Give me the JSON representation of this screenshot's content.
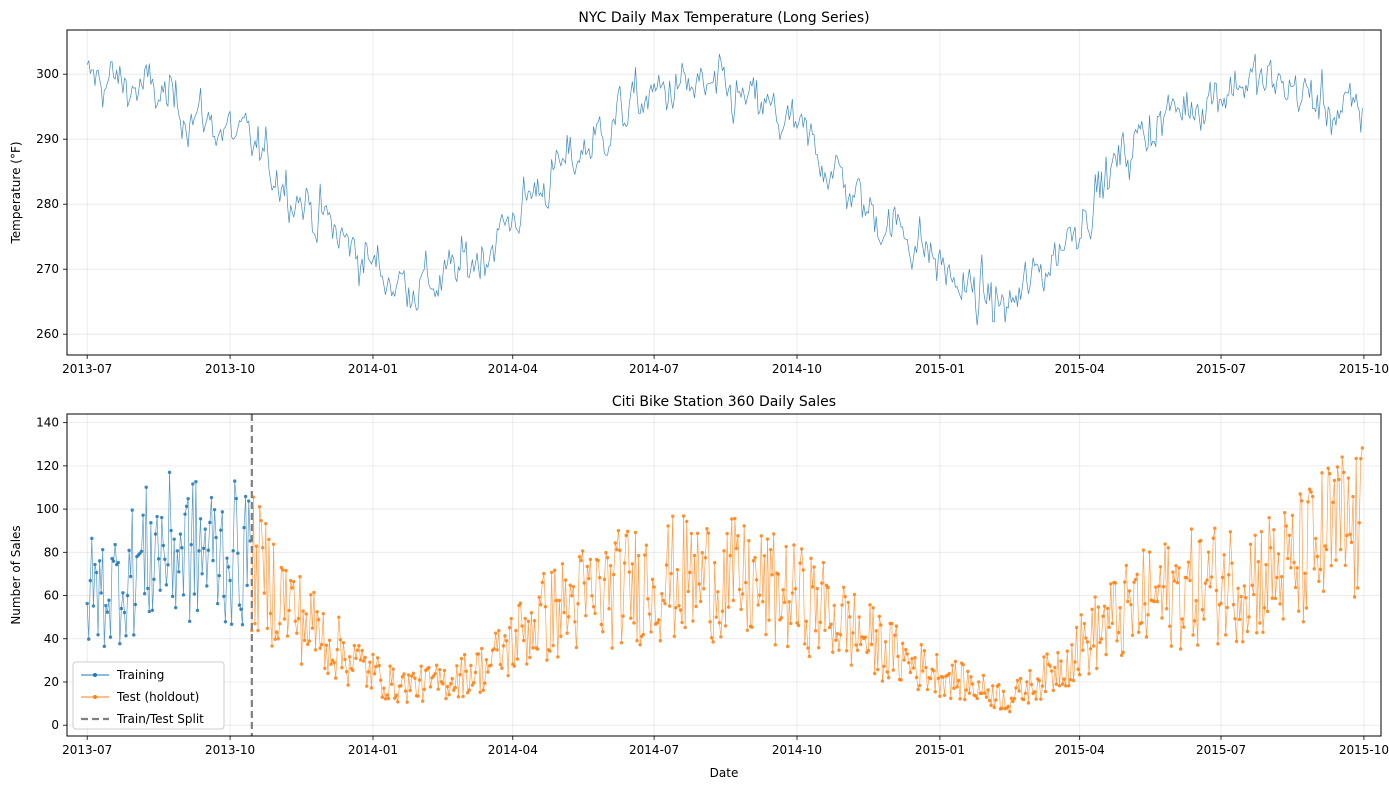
{
  "chart_data": [
    {
      "type": "line",
      "title": "NYC Daily Max Temperature (Long Series)",
      "xlabel": "",
      "ylabel": "Temperature (°F)",
      "xlim": [
        "2013-06-18",
        "2015-10-12"
      ],
      "ylim": [
        256.8,
        306.8
      ],
      "xticks": [
        "2013-07",
        "2013-10",
        "2014-01",
        "2014-04",
        "2014-07",
        "2014-10",
        "2015-01",
        "2015-04",
        "2015-07",
        "2015-10"
      ],
      "yticks": [
        260,
        270,
        280,
        290,
        300
      ],
      "grid": true,
      "color": "#1f77b4",
      "series": [
        {
          "name": "Temperature",
          "x_range": [
            "2013-07-01",
            "2015-09-30"
          ],
          "frequency": "daily",
          "seasonal_shape": {
            "mean": 282.5,
            "amplitude": 16,
            "peak": "mid-July",
            "trough": "mid-January",
            "noise_std": 3
          },
          "approx_monthly_values": [
            {
              "x": "2013-07",
              "y": 299
            },
            {
              "x": "2013-08",
              "y": 297
            },
            {
              "x": "2013-09",
              "y": 293
            },
            {
              "x": "2013-10",
              "y": 289
            },
            {
              "x": "2013-11",
              "y": 281
            },
            {
              "x": "2013-12",
              "y": 274
            },
            {
              "x": "2014-01",
              "y": 268
            },
            {
              "x": "2014-02",
              "y": 268
            },
            {
              "x": "2014-03",
              "y": 273
            },
            {
              "x": "2014-04",
              "y": 282
            },
            {
              "x": "2014-05",
              "y": 288
            },
            {
              "x": "2014-06",
              "y": 295
            },
            {
              "x": "2014-07",
              "y": 298
            },
            {
              "x": "2014-08",
              "y": 297
            },
            {
              "x": "2014-09",
              "y": 294
            },
            {
              "x": "2014-10",
              "y": 288
            },
            {
              "x": "2014-11",
              "y": 279
            },
            {
              "x": "2014-12",
              "y": 275
            },
            {
              "x": "2015-01",
              "y": 267
            },
            {
              "x": "2015-02",
              "y": 264
            },
            {
              "x": "2015-03",
              "y": 272
            },
            {
              "x": "2015-04",
              "y": 283
            },
            {
              "x": "2015-05",
              "y": 292
            },
            {
              "x": "2015-06",
              "y": 296
            },
            {
              "x": "2015-07",
              "y": 299
            },
            {
              "x": "2015-08",
              "y": 298
            },
            {
              "x": "2015-09",
              "y": 294
            }
          ]
        }
      ]
    },
    {
      "type": "line",
      "title": "Citi Bike Station 360 Daily Sales",
      "xlabel": "Date",
      "ylabel": "Number of Sales",
      "xlim": [
        "2013-06-18",
        "2015-10-12"
      ],
      "ylim": [
        -5,
        144
      ],
      "xticks": [
        "2013-07",
        "2013-10",
        "2014-01",
        "2014-04",
        "2014-07",
        "2014-10",
        "2015-01",
        "2015-04",
        "2015-07",
        "2015-10"
      ],
      "yticks": [
        0,
        20,
        40,
        60,
        80,
        100,
        120,
        140
      ],
      "grid": true,
      "legend_position": "lower-left",
      "split_date": "2013-10-15",
      "series": [
        {
          "name": "Training",
          "color": "#1f77b4",
          "marker": "circle",
          "x_range": [
            "2013-07-01",
            "2013-10-14"
          ],
          "frequency": "daily",
          "approx_monthly_values": [
            {
              "x": "2013-07",
              "y": 62
            },
            {
              "x": "2013-08",
              "y": 82
            },
            {
              "x": "2013-09",
              "y": 80
            },
            {
              "x": "2013-10",
              "y": 78
            }
          ]
        },
        {
          "name": "Test (holdout)",
          "color": "#ff7f0e",
          "marker": "circle",
          "x_range": [
            "2013-10-15",
            "2015-09-30"
          ],
          "frequency": "daily",
          "approx_monthly_values": [
            {
              "x": "2013-10",
              "y": 75
            },
            {
              "x": "2013-11",
              "y": 50
            },
            {
              "x": "2013-12",
              "y": 32
            },
            {
              "x": "2014-01",
              "y": 18
            },
            {
              "x": "2014-02",
              "y": 20
            },
            {
              "x": "2014-03",
              "y": 27
            },
            {
              "x": "2014-04",
              "y": 48
            },
            {
              "x": "2014-05",
              "y": 58
            },
            {
              "x": "2014-06",
              "y": 65
            },
            {
              "x": "2014-07",
              "y": 68
            },
            {
              "x": "2014-08",
              "y": 68
            },
            {
              "x": "2014-09",
              "y": 62
            },
            {
              "x": "2014-10",
              "y": 55
            },
            {
              "x": "2014-11",
              "y": 40
            },
            {
              "x": "2014-12",
              "y": 28
            },
            {
              "x": "2015-01",
              "y": 20
            },
            {
              "x": "2015-02",
              "y": 12
            },
            {
              "x": "2015-03",
              "y": 25
            },
            {
              "x": "2015-04",
              "y": 45
            },
            {
              "x": "2015-05",
              "y": 58
            },
            {
              "x": "2015-06",
              "y": 64
            },
            {
              "x": "2015-07",
              "y": 68
            },
            {
              "x": "2015-08",
              "y": 72
            },
            {
              "x": "2015-09",
              "y": 90
            }
          ]
        },
        {
          "name": "Train/Test Split",
          "color": "#808080",
          "style": "dashed-vertical",
          "x": "2013-10-15"
        }
      ]
    }
  ]
}
